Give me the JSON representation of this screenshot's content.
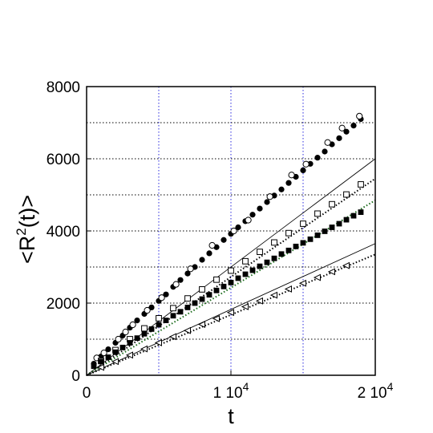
{
  "chart_data": {
    "type": "scatter",
    "title": "",
    "xlabel": "t",
    "ylabel": "<R2(t)>",
    "ylabel_parts": {
      "prefix": "<R",
      "superscript": "2",
      "suffix": "(t)>"
    },
    "xlim": [
      0,
      20000
    ],
    "ylim": [
      0,
      8000
    ],
    "x_ticks": [
      {
        "value": 0,
        "label": "0"
      },
      {
        "value": 10000,
        "label": "1 10",
        "exponent": "4"
      },
      {
        "value": 20000,
        "label": "2 10",
        "exponent": "4"
      }
    ],
    "y_ticks": [
      {
        "value": 0,
        "label": "0"
      },
      {
        "value": 2000,
        "label": "2000"
      },
      {
        "value": 4000,
        "label": "4000"
      },
      {
        "value": 6000,
        "label": "6000"
      },
      {
        "value": 8000,
        "label": "8000"
      }
    ],
    "grid": {
      "vertical": [
        5000,
        10000,
        15000
      ],
      "horizontal": [
        1000,
        2000,
        3000,
        4000,
        5000,
        6000,
        7000
      ],
      "vertical_color": "#2a2adf",
      "horizontal_color": "#000000"
    },
    "series": [
      {
        "marker": "filled-circle",
        "x": [
          500,
          1000,
          1500,
          2000,
          2500,
          3000,
          3500,
          4000,
          4500,
          5000,
          5500,
          6000,
          6500,
          7000,
          7500,
          8000,
          8500,
          9000,
          9500,
          10000,
          10500,
          11000,
          11500,
          12000,
          12500,
          13000,
          13500,
          14000,
          14500,
          15000,
          15500,
          16000,
          16500,
          17000,
          17500,
          18000,
          18500,
          19000
        ],
        "y": [
          320,
          520,
          720,
          900,
          1100,
          1320,
          1520,
          1700,
          1880,
          2060,
          2240,
          2450,
          2640,
          2820,
          3000,
          3200,
          3380,
          3550,
          3750,
          3920,
          4100,
          4270,
          4450,
          4620,
          4800,
          4980,
          5150,
          5330,
          5500,
          5680,
          5860,
          6030,
          6200,
          6400,
          6570,
          6750,
          6920,
          7100
        ]
      },
      {
        "marker": "open-circle",
        "x": [
          700,
          1200,
          2200,
          2700,
          3200,
          4200,
          5200,
          6200,
          7200,
          8700,
          10200,
          11200,
          12700,
          14200,
          15200,
          16700,
          17700,
          18900
        ],
        "y": [
          480,
          620,
          1000,
          1200,
          1400,
          1800,
          2150,
          2520,
          2950,
          3600,
          4000,
          4300,
          4950,
          5550,
          5850,
          6450,
          6850,
          7180
        ]
      },
      {
        "marker": "open-square",
        "x": [
          1000,
          2000,
          3000,
          4000,
          5000,
          6000,
          7000,
          8000,
          9000,
          10000,
          11000,
          12000,
          13000,
          14000,
          15000,
          16000,
          17000,
          18000,
          19000
        ],
        "y": [
          400,
          700,
          1000,
          1300,
          1580,
          1860,
          2130,
          2380,
          2650,
          2900,
          3160,
          3420,
          3680,
          3940,
          4200,
          4480,
          4740,
          5010,
          5290
        ]
      },
      {
        "marker": "filled-square",
        "x": [
          500,
          1000,
          1500,
          2000,
          2500,
          3000,
          3500,
          4000,
          4500,
          5000,
          5500,
          6000,
          6500,
          7000,
          7500,
          8000,
          8500,
          9000,
          9500,
          10000,
          10500,
          11000,
          11500,
          12000,
          12500,
          13000,
          13500,
          14000,
          14500,
          15000,
          15500,
          16000,
          16500,
          17000,
          17500,
          18000,
          18500,
          19000
        ],
        "y": [
          250,
          380,
          500,
          640,
          770,
          900,
          1030,
          1150,
          1280,
          1400,
          1520,
          1650,
          1760,
          1880,
          2000,
          2110,
          2230,
          2350,
          2460,
          2570,
          2690,
          2800,
          2910,
          3020,
          3130,
          3240,
          3360,
          3460,
          3570,
          3670,
          3770,
          3880,
          3990,
          4100,
          4200,
          4310,
          4420,
          4520
        ]
      },
      {
        "marker": "open-triangle",
        "x": [
          1000,
          2000,
          3000,
          4000,
          5000,
          6000,
          7000,
          8000,
          9000,
          10000,
          11000,
          12000,
          13000,
          14000,
          15000,
          16000,
          17000,
          18000
        ],
        "y": [
          220,
          380,
          560,
          730,
          900,
          1070,
          1240,
          1410,
          1570,
          1740,
          1900,
          2060,
          2220,
          2390,
          2550,
          2710,
          2870,
          3040
        ]
      }
    ],
    "fit_lines": [
      {
        "style": "solid",
        "color": "#000000",
        "x": [
          0,
          20000
        ],
        "y": [
          0,
          6000
        ]
      },
      {
        "style": "solid",
        "color": "#000000",
        "x": [
          0,
          20000
        ],
        "y": [
          0,
          3650
        ]
      },
      {
        "style": "dotted",
        "color": "#000000",
        "x": [
          0,
          20000
        ],
        "y": [
          0,
          5450
        ]
      },
      {
        "style": "dotted",
        "color": "#1a6b1a",
        "x": [
          0,
          20000
        ],
        "y": [
          0,
          4850
        ]
      },
      {
        "style": "dotted",
        "color": "#000000",
        "x": [
          0,
          20000
        ],
        "y": [
          0,
          3350
        ]
      }
    ]
  }
}
